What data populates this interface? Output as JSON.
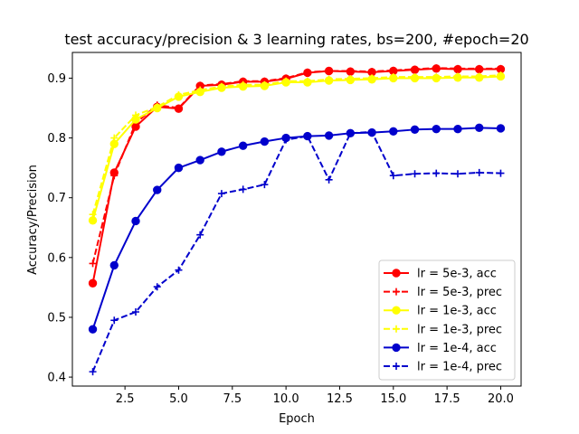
{
  "chart_data": {
    "type": "line",
    "title": "test accuracy/precision & 3 learning rates, bs=200, #epoch=20",
    "xlabel": "Epoch",
    "ylabel": "Accuracy/Precision",
    "xlim": [
      0.05,
      20.95
    ],
    "ylim": [
      0.385,
      0.943
    ],
    "xticks": [
      2.5,
      5.0,
      7.5,
      10.0,
      12.5,
      15.0,
      17.5,
      20.0
    ],
    "xtick_labels": [
      "2.5",
      "5.0",
      "7.5",
      "10.0",
      "12.5",
      "15.0",
      "17.5",
      "20.0"
    ],
    "yticks": [
      0.4,
      0.5,
      0.6,
      0.7,
      0.8,
      0.9
    ],
    "ytick_labels": [
      "0.4",
      "0.5",
      "0.6",
      "0.7",
      "0.8",
      "0.9"
    ],
    "grid": false,
    "legend_position": "lower-right",
    "x": [
      1,
      2,
      3,
      4,
      5,
      6,
      7,
      8,
      9,
      10,
      11,
      12,
      13,
      14,
      15,
      16,
      17,
      18,
      19,
      20
    ],
    "series": [
      {
        "name": "lr = 5e-3, acc",
        "color": "#ff0000",
        "linestyle": "solid",
        "marker": "circle",
        "values": [
          0.557,
          0.742,
          0.819,
          0.852,
          0.849,
          0.887,
          0.889,
          0.894,
          0.894,
          0.899,
          0.909,
          0.912,
          0.911,
          0.91,
          0.912,
          0.914,
          0.916,
          0.915,
          0.915,
          0.915
        ]
      },
      {
        "name": "lr = 5e-3, prec",
        "color": "#ff0000",
        "linestyle": "dashed",
        "marker": "plus",
        "values": [
          0.59,
          0.737,
          0.825,
          0.855,
          0.85,
          0.888,
          0.89,
          0.895,
          0.895,
          0.9,
          0.91,
          0.912,
          0.912,
          0.911,
          0.913,
          0.915,
          0.917,
          0.916,
          0.916,
          0.916
        ]
      },
      {
        "name": "lr = 1e-3, acc",
        "color": "#ffff00",
        "linestyle": "solid",
        "marker": "circle",
        "values": [
          0.662,
          0.79,
          0.831,
          0.85,
          0.869,
          0.877,
          0.884,
          0.886,
          0.887,
          0.893,
          0.893,
          0.896,
          0.897,
          0.898,
          0.9,
          0.9,
          0.9,
          0.901,
          0.901,
          0.903
        ]
      },
      {
        "name": "lr = 1e-3, prec",
        "color": "#ffff00",
        "linestyle": "dashed",
        "marker": "plus",
        "values": [
          0.672,
          0.8,
          0.838,
          0.852,
          0.872,
          0.88,
          0.886,
          0.889,
          0.889,
          0.895,
          0.895,
          0.898,
          0.899,
          0.9,
          0.902,
          0.902,
          0.902,
          0.903,
          0.903,
          0.905
        ]
      },
      {
        "name": "lr = 1e-4, acc",
        "color": "#0000cc",
        "linestyle": "solid",
        "marker": "circle",
        "values": [
          0.48,
          0.587,
          0.661,
          0.713,
          0.75,
          0.763,
          0.777,
          0.787,
          0.794,
          0.8,
          0.803,
          0.804,
          0.808,
          0.809,
          0.811,
          0.814,
          0.815,
          0.815,
          0.817,
          0.816
        ]
      },
      {
        "name": "lr = 1e-4, prec",
        "color": "#0000cc",
        "linestyle": "dashed",
        "marker": "plus",
        "values": [
          0.409,
          0.495,
          0.509,
          0.551,
          0.579,
          0.638,
          0.707,
          0.714,
          0.722,
          0.797,
          0.803,
          0.73,
          0.808,
          0.81,
          0.737,
          0.74,
          0.741,
          0.74,
          0.742,
          0.741
        ]
      }
    ]
  }
}
